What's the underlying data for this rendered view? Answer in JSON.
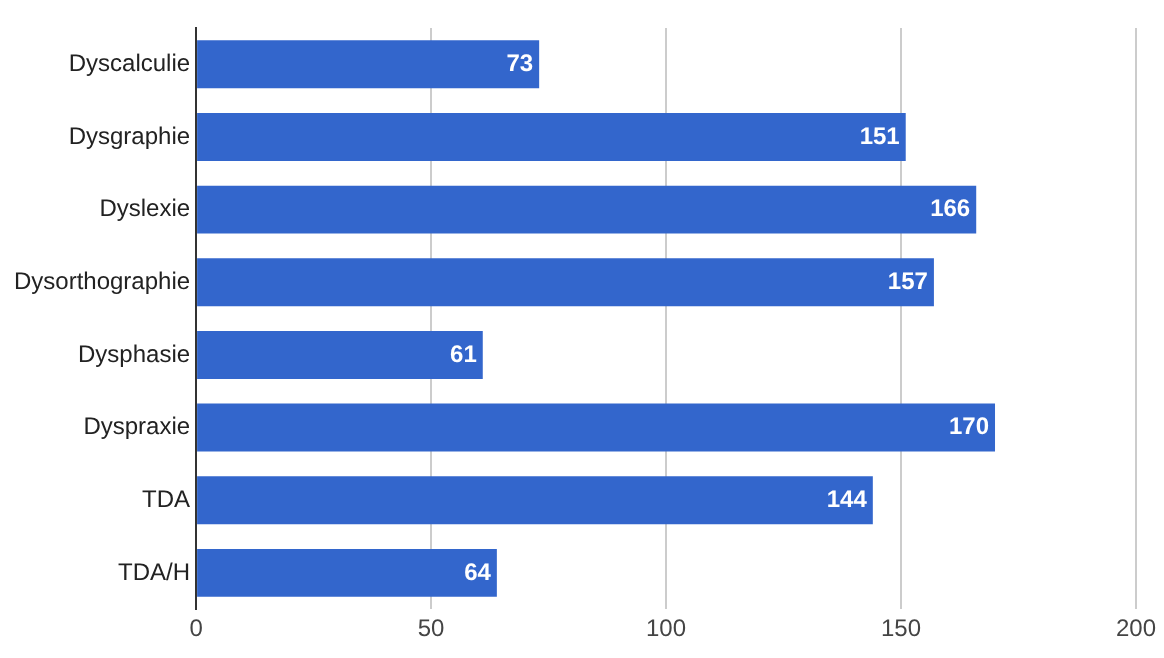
{
  "chart_data": {
    "type": "bar",
    "orientation": "horizontal",
    "categories": [
      "Dyscalculie",
      "Dysgraphie",
      "Dyslexie",
      "Dysorthographie",
      "Dysphasie",
      "Dyspraxie",
      "TDA",
      "TDA/H"
    ],
    "values": [
      73,
      151,
      166,
      157,
      61,
      170,
      144,
      64
    ],
    "color": "#3366cc",
    "xlim": [
      0,
      200
    ],
    "xticks": [
      0,
      50,
      100,
      150,
      200
    ],
    "grid": "x",
    "data_labels": true
  }
}
